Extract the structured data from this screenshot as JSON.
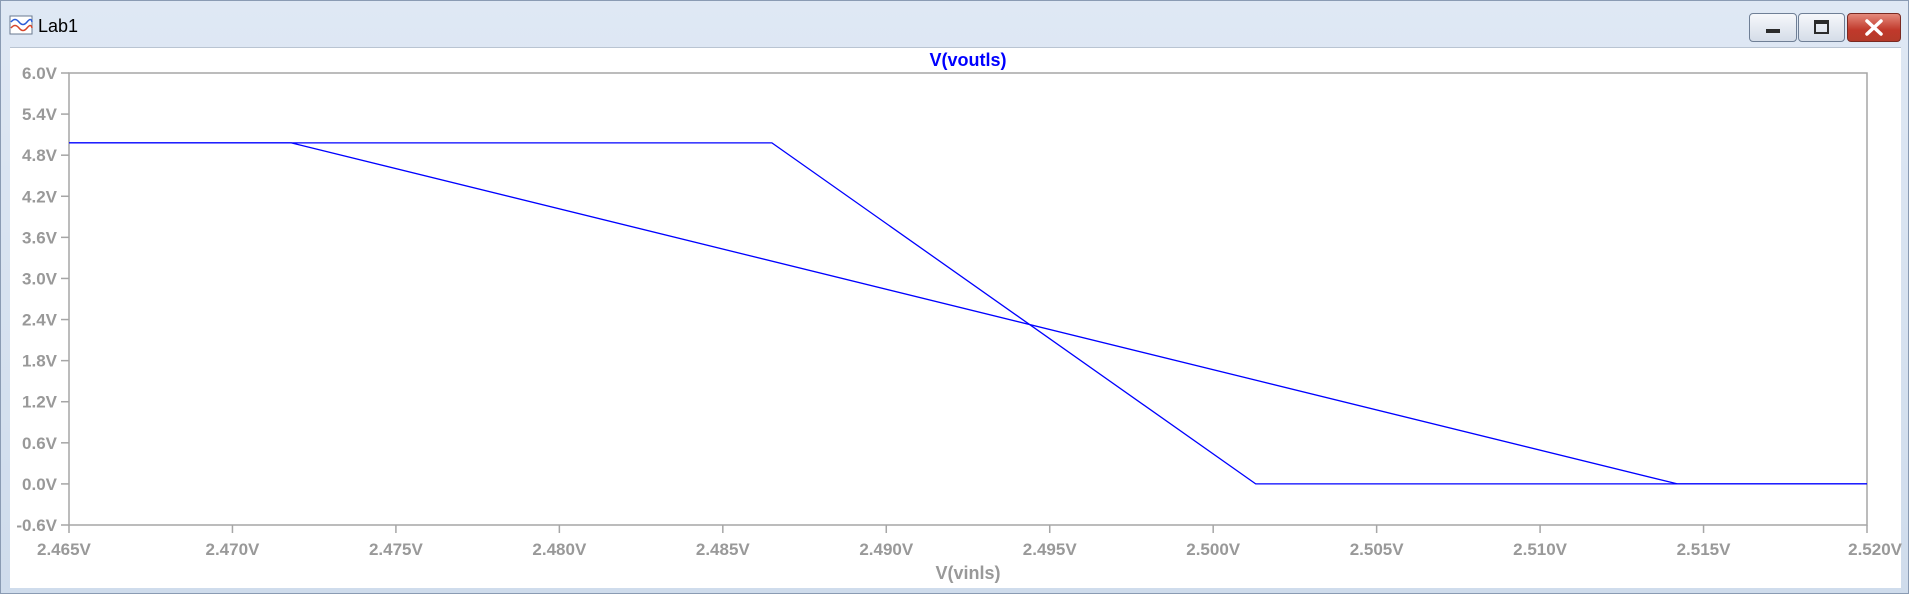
{
  "window": {
    "title": "Lab1",
    "icon": "waveform-icon",
    "controls": [
      "minimize-icon",
      "maximize-icon",
      "close-icon"
    ]
  },
  "chart_data": {
    "type": "line",
    "title": "V(voutls)",
    "xlabel": "V(vinls)",
    "ylabel": "",
    "xlim": [
      2.465,
      2.52
    ],
    "ylim": [
      -0.6,
      6.0
    ],
    "x_ticks": [
      "2.465V",
      "2.470V",
      "2.475V",
      "2.480V",
      "2.485V",
      "2.490V",
      "2.495V",
      "2.500V",
      "2.505V",
      "2.510V",
      "2.515V",
      "2.520V"
    ],
    "y_ticks": [
      "6.0V",
      "5.4V",
      "4.8V",
      "4.2V",
      "3.6V",
      "3.0V",
      "2.4V",
      "1.8V",
      "1.2V",
      "0.6V",
      "0.0V",
      "-0.6V"
    ],
    "grid": false,
    "colors": {
      "trace": "#0000ff",
      "title": "#0000ff",
      "axis_text": "#999999",
      "frame": "#a6a6a6"
    },
    "series": [
      {
        "points": [
          [
            2.465,
            4.98
          ],
          [
            2.4718,
            4.98
          ],
          [
            2.5142,
            0.0
          ],
          [
            2.52,
            0.0
          ]
        ]
      },
      {
        "points": [
          [
            2.465,
            4.98
          ],
          [
            2.4865,
            4.98
          ],
          [
            2.5013,
            0.0
          ],
          [
            2.52,
            0.0
          ]
        ]
      }
    ]
  }
}
